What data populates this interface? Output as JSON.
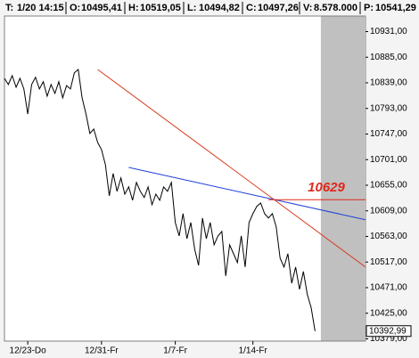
{
  "chart_data": {
    "type": "line",
    "header": [
      {
        "label": "T:",
        "value": "1/20 14:15"
      },
      {
        "label": "O:",
        "value": "10495,41"
      },
      {
        "label": "H:",
        "value": "10519,05"
      },
      {
        "label": "L:",
        "value": "10494,82"
      },
      {
        "label": "C:",
        "value": "10497,26"
      },
      {
        "label": "V:",
        "value": "8.578.000"
      },
      {
        "label": "P:",
        "value": "10541,29"
      }
    ],
    "x": [
      0,
      1,
      2,
      3,
      4,
      5,
      6,
      7,
      8,
      9,
      10,
      11,
      12,
      13,
      14,
      15,
      16,
      17,
      18,
      19,
      20,
      21,
      22,
      23,
      24,
      25,
      26,
      27,
      28,
      29,
      30,
      31,
      32,
      33,
      34,
      35,
      36,
      37,
      38,
      39,
      40,
      41,
      42,
      43,
      44,
      45,
      46,
      47,
      48,
      49,
      50,
      51,
      52,
      53,
      54,
      55,
      56,
      57,
      58,
      59,
      60,
      61,
      62,
      63,
      64,
      65,
      66,
      67,
      68,
      69,
      70,
      71,
      72,
      73,
      74,
      75,
      76,
      77,
      78,
      79,
      80
    ],
    "series": [
      {
        "color": "#000000",
        "values": [
          10847,
          10836,
          10852,
          10831,
          10847,
          10828,
          10783,
          10836,
          10849,
          10828,
          10841,
          10815,
          10836,
          10820,
          10841,
          10812,
          10834,
          10828,
          10857,
          10863,
          10812,
          10783,
          10748,
          10756,
          10732,
          10719,
          10692,
          10636,
          10676,
          10644,
          10668,
          10639,
          10652,
          10628,
          10660,
          10644,
          10633,
          10652,
          10620,
          10639,
          10628,
          10652,
          10644,
          10660,
          10588,
          10564,
          10604,
          10559,
          10588,
          10540,
          10511,
          10596,
          10559,
          10588,
          10548,
          10564,
          10572,
          10492,
          10548,
          10532,
          10516,
          10564,
          10508,
          10588,
          10604,
          10617,
          10623,
          10604,
          10596,
          10604,
          10580,
          10524,
          10508,
          10532,
          10479,
          10508,
          10468,
          10500,
          10459,
          10435,
          10393
        ]
      }
    ],
    "trendlines": [
      {
        "color": "#d83a1c",
        "x": [
          24,
          93
        ],
        "values": [
          10863,
          10508
        ]
      },
      {
        "color": "#1f3fd8",
        "x": [
          32,
          93
        ],
        "values": [
          10687,
          10593
        ]
      }
    ],
    "level": {
      "value": 10629,
      "color": "#e0281a",
      "x": [
        68,
        93
      ]
    },
    "shaded_xlim": [
      81.5,
      93
    ],
    "last_price": {
      "value": 10392.99,
      "label": "10392,99"
    },
    "xlim": [
      0,
      93
    ],
    "xticks": [
      {
        "value": 6,
        "label": "12/23-Do"
      },
      {
        "value": 25,
        "label": "12/31-Fr"
      },
      {
        "value": 44,
        "label": "1/7-Fr"
      },
      {
        "value": 64,
        "label": "1/14-Fr"
      }
    ],
    "ylim": [
      10375,
      10959
    ],
    "yticks": [
      {
        "value": 10379,
        "label": "10379,00"
      },
      {
        "value": 10425,
        "label": "10425,00"
      },
      {
        "value": 10471,
        "label": "10471,00"
      },
      {
        "value": 10517,
        "label": "10517,00"
      },
      {
        "value": 10563,
        "label": "10563,00"
      },
      {
        "value": 10609,
        "label": "10609,00"
      },
      {
        "value": 10655,
        "label": "10655,00"
      },
      {
        "value": 10701,
        "label": "10701,00"
      },
      {
        "value": 10747,
        "label": "10747,00"
      },
      {
        "value": 10793,
        "label": "10793,00"
      },
      {
        "value": 10839,
        "label": "10839,00"
      },
      {
        "value": 10885,
        "label": "10885,00"
      },
      {
        "value": 10931,
        "label": "10931,00"
      }
    ]
  }
}
